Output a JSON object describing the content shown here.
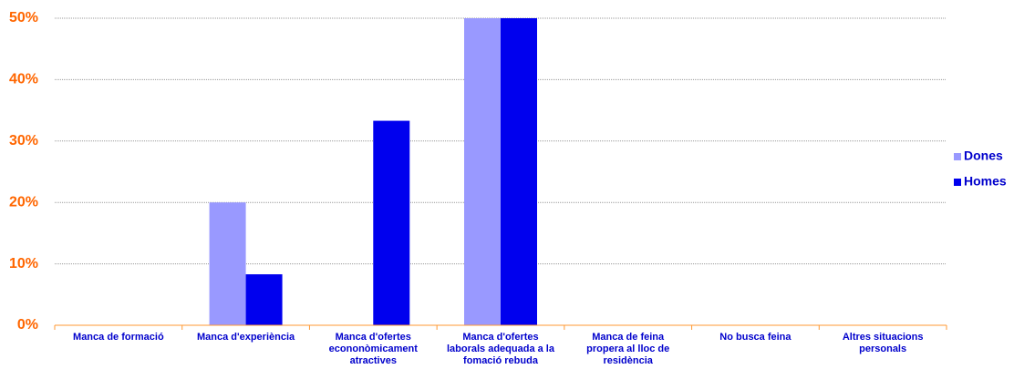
{
  "chart_data": {
    "type": "bar",
    "categories": [
      "Manca de formació",
      "Manca d'experiència",
      "Manca d'ofertes econonòmicament atractives",
      "Manca d'ofertes laborals adequada a la fomació rebuda",
      "Manca de feina propera al lloc de residència",
      "No busca feina",
      "Altres situacions personals"
    ],
    "series": [
      {
        "name": "Dones",
        "color": "#9999ff",
        "values": [
          0,
          20,
          0,
          50,
          0,
          0,
          0
        ]
      },
      {
        "name": "Homes",
        "color": "#0000ee",
        "values": [
          0,
          8.3,
          33.3,
          50,
          0,
          0,
          0
        ]
      }
    ],
    "ylim": [
      0,
      50
    ],
    "yticks": [
      {
        "value": 0,
        "label": "0%"
      },
      {
        "value": 10,
        "label": "10%"
      },
      {
        "value": 20,
        "label": "20%"
      },
      {
        "value": 30,
        "label": "30%"
      },
      {
        "value": 40,
        "label": "40%"
      },
      {
        "value": 50,
        "label": "50%"
      }
    ],
    "grid": true,
    "legend": "right"
  }
}
